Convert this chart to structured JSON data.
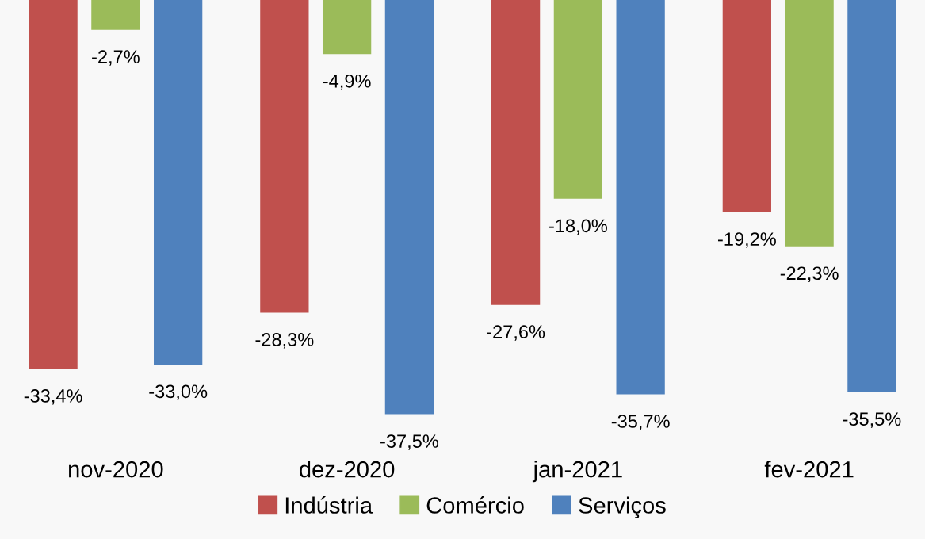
{
  "chart_data": {
    "type": "bar",
    "categories": [
      "nov-2020",
      "dez-2020",
      "jan-2021",
      "fev-2021"
    ],
    "series": [
      {
        "name": "Indústria",
        "color": "#c0504d",
        "values": [
          -33.4,
          -28.3,
          -27.6,
          -19.2
        ],
        "value_labels": [
          "-33,4%",
          "-28,3%",
          "-27,6%",
          "-19,2%"
        ]
      },
      {
        "name": "Comércio",
        "color": "#9bbb59",
        "values": [
          -2.7,
          -4.9,
          -18.0,
          -22.3
        ],
        "value_labels": [
          "-2,7%",
          "-4,9%",
          "-18,0%",
          "-22,3%"
        ]
      },
      {
        "name": "Serviços",
        "color": "#4f81bd",
        "values": [
          -33.0,
          -37.5,
          -35.7,
          -35.5
        ],
        "value_labels": [
          "-33,0%",
          "-37,5%",
          "-35,7%",
          "-35,5%"
        ]
      }
    ],
    "legend": "bottom",
    "grid": false
  }
}
